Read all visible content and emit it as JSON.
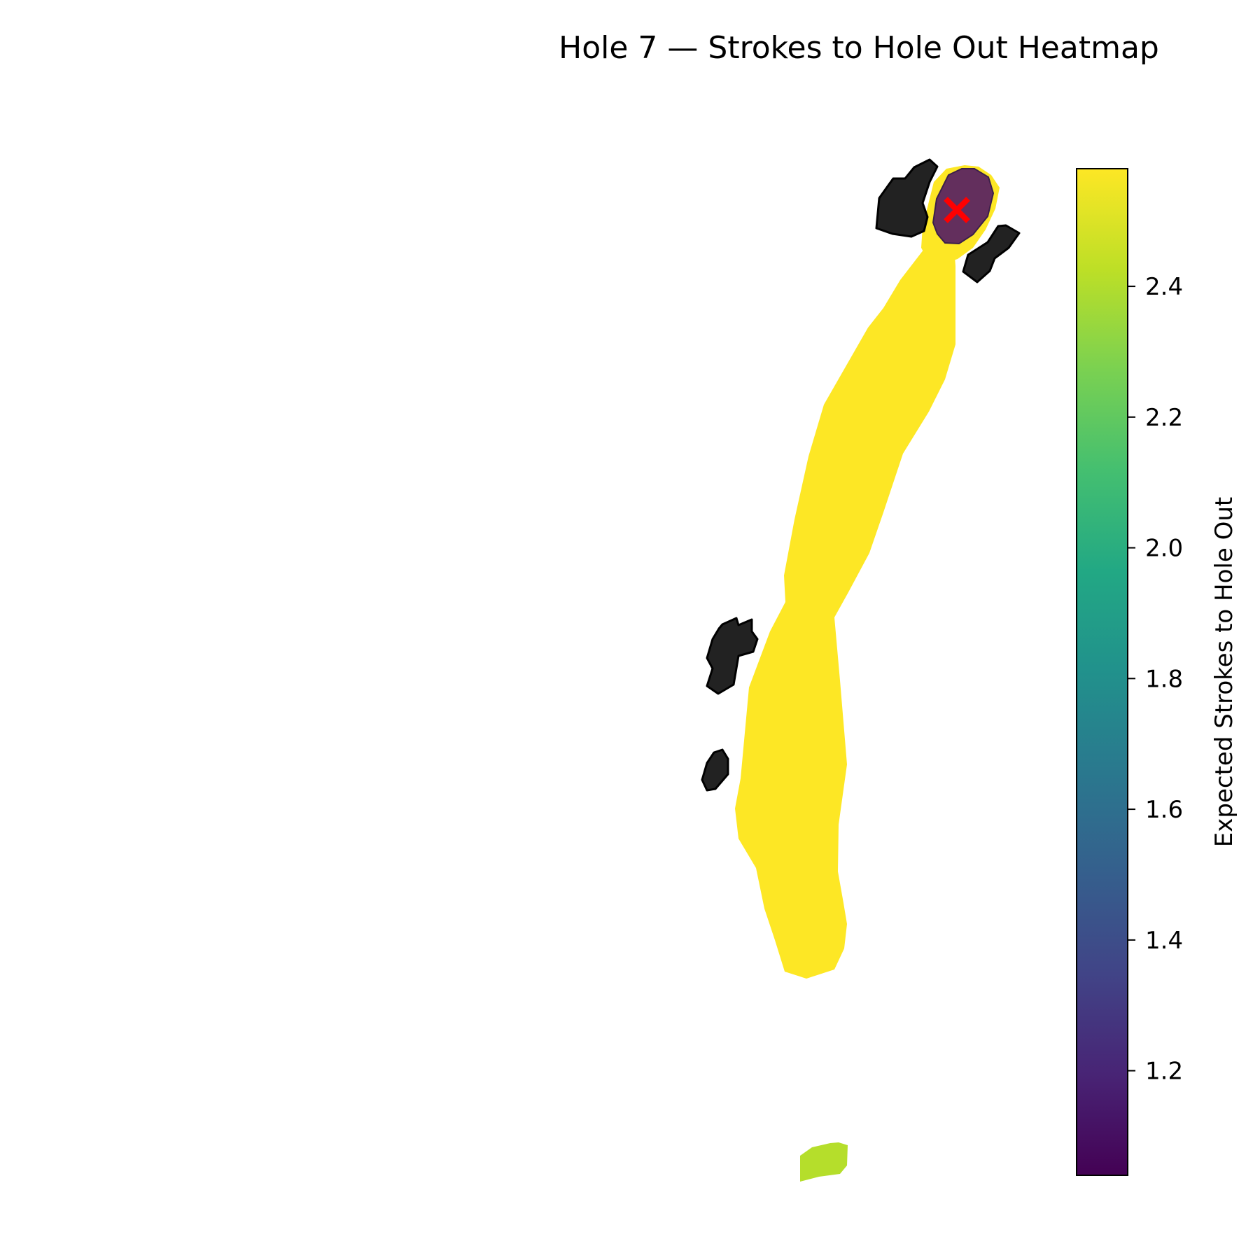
{
  "figure": {
    "title": "Hole 7 — Strokes to Hole Out Heatmap"
  },
  "map": {
    "regions": [
      {
        "name": "fairway",
        "value": 2.58,
        "color": "#fde725"
      },
      {
        "name": "tee-box",
        "value": 2.4,
        "color": "#b5de2b"
      },
      {
        "name": "green",
        "value": 1.1,
        "color": "#5b2560"
      }
    ],
    "hazards": [
      {
        "name": "bunker-green-left",
        "type": "bunker",
        "color": "#222222"
      },
      {
        "name": "bunker-green-right",
        "type": "bunker",
        "color": "#222222"
      },
      {
        "name": "bunker-fairway-upper",
        "type": "bunker",
        "color": "#222222"
      },
      {
        "name": "bunker-fairway-lower",
        "type": "bunker",
        "color": "#222222"
      }
    ],
    "pin": {
      "marker": "x-mark",
      "color": "#ff0000"
    }
  },
  "colorbar": {
    "label": "Expected Strokes to Hole Out",
    "colormap": "viridis",
    "range": [
      1.04,
      2.58
    ],
    "ticks": [
      "1.2",
      "1.4",
      "1.6",
      "1.8",
      "2.0",
      "2.2",
      "2.4"
    ],
    "tick_values": [
      1.2,
      1.4,
      1.6,
      1.8,
      2.0,
      2.2,
      2.4
    ]
  }
}
